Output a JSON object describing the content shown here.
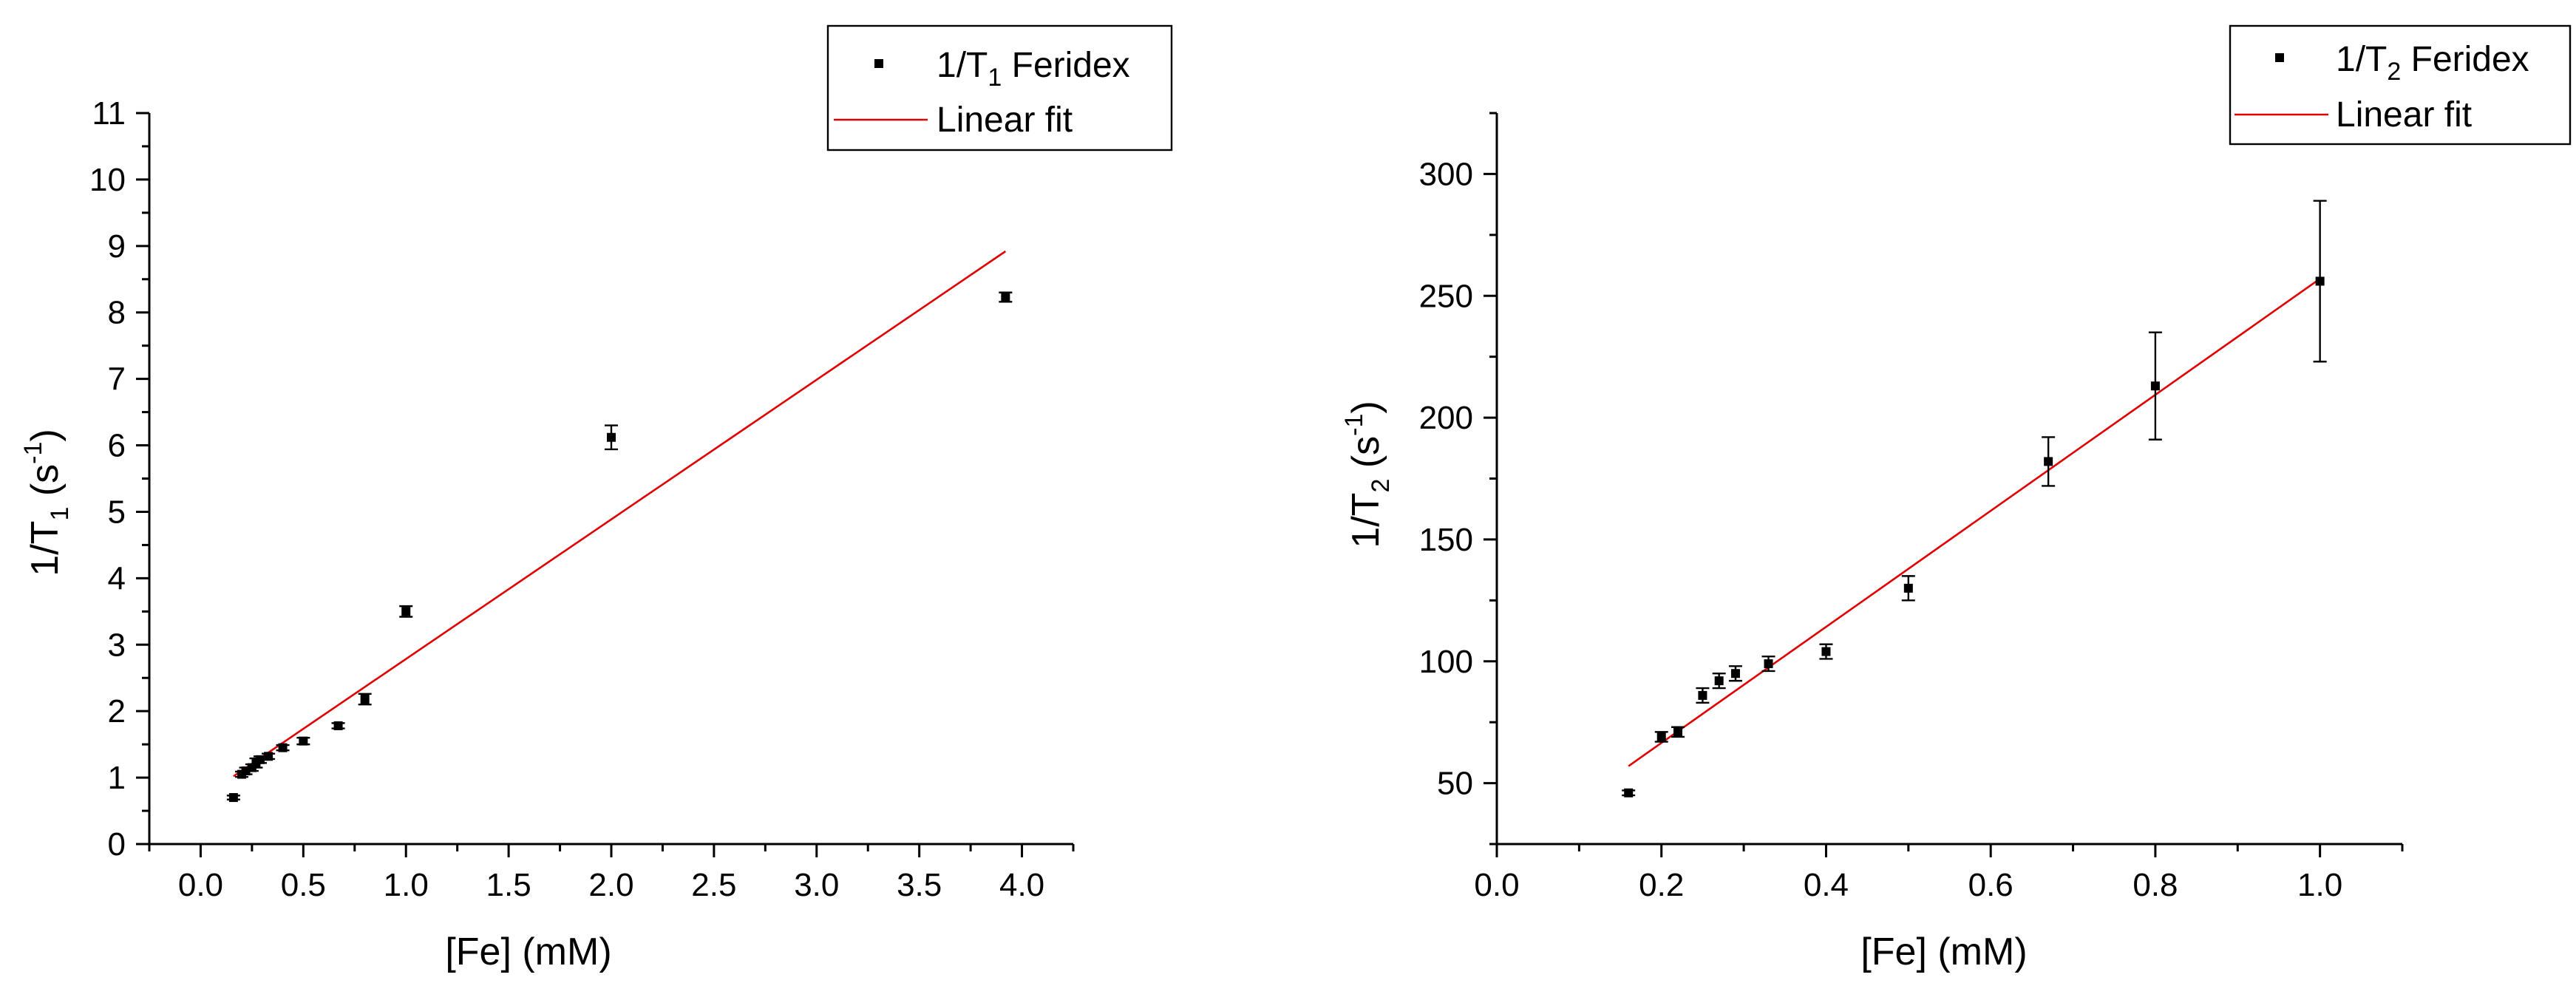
{
  "chart_data": [
    {
      "type": "scatter",
      "x": [
        0.16,
        0.2,
        0.22,
        0.25,
        0.27,
        0.29,
        0.33,
        0.4,
        0.5,
        0.67,
        0.8,
        1.0,
        2.0,
        3.92
      ],
      "y": [
        0.7,
        1.05,
        1.1,
        1.15,
        1.22,
        1.27,
        1.32,
        1.45,
        1.55,
        1.78,
        2.18,
        3.5,
        6.12,
        8.23
      ],
      "yerr": [
        0.03,
        0.04,
        0.05,
        0.05,
        0.07,
        0.05,
        0.04,
        0.04,
        0.05,
        0.04,
        0.08,
        0.08,
        0.18,
        0.07
      ],
      "series": [
        {
          "name": "1/T1 Feridex",
          "type": "scatter"
        },
        {
          "name": "Linear fit",
          "type": "line",
          "x": [
            0.16,
            3.92
          ],
          "y": [
            1.02,
            8.92
          ]
        }
      ],
      "title": "",
      "xlabel": "[Fe] (mM)",
      "ylabel": "1/T1 (s-1)",
      "xlim": [
        -0.25,
        4.25
      ],
      "ylim": [
        0,
        11
      ],
      "xticks": [
        "0.0",
        "0.5",
        "1.0",
        "1.5",
        "2.0",
        "2.5",
        "3.0",
        "3.5",
        "4.0"
      ],
      "yticks": [
        "0",
        "1",
        "2",
        "3",
        "4",
        "5",
        "6",
        "7",
        "8",
        "9",
        "10",
        "11"
      ],
      "grid": false,
      "legend": "top-right",
      "colors": {
        "points": "#000000",
        "fit": "#e00000"
      }
    },
    {
      "type": "scatter",
      "x": [
        0.16,
        0.2,
        0.22,
        0.25,
        0.27,
        0.29,
        0.33,
        0.4,
        0.5,
        0.67,
        0.8,
        1.0
      ],
      "y": [
        46,
        69,
        71,
        86,
        92,
        95,
        99,
        104,
        130,
        182,
        213,
        256
      ],
      "yerr": [
        1,
        2,
        2,
        3,
        3,
        3,
        3,
        3,
        5,
        10,
        22,
        33
      ],
      "series": [
        {
          "name": "1/T2 Feridex",
          "type": "scatter"
        },
        {
          "name": "Linear fit",
          "type": "line",
          "x": [
            0.16,
            1.0
          ],
          "y": [
            57,
            257
          ]
        }
      ],
      "title": "",
      "xlabel": "[Fe] (mM)",
      "ylabel": "1/T2 (s-1)",
      "xlim": [
        0.0,
        1.1
      ],
      "ylim": [
        25,
        325
      ],
      "xticks": [
        "0.0",
        "0.2",
        "0.4",
        "0.6",
        "0.8",
        "1.0"
      ],
      "yticks": [
        "50",
        "100",
        "150",
        "200",
        "250",
        "300"
      ],
      "grid": false,
      "legend": "top-right",
      "colors": {
        "points": "#000000",
        "fit": "#e00000"
      }
    }
  ],
  "legend_text": {
    "left": {
      "prefix": "1/T",
      "sub": "1",
      "suffix": " Feridex",
      "fit": "Linear fit"
    },
    "right": {
      "prefix": "1/T",
      "sub": "2",
      "suffix": " Feridex",
      "fit": "Linear fit"
    }
  },
  "axis_titles": {
    "left_x": "[Fe] (mM)",
    "left_y": {
      "prefix": "1/T",
      "sub": "1",
      "mid": " (s",
      "sup": "-1",
      "end": ")"
    },
    "right_x": "[Fe] (mM)",
    "right_y": {
      "prefix": "1/T",
      "sub": "2",
      "mid": " (s",
      "sup": "-1",
      "end": ")"
    }
  }
}
